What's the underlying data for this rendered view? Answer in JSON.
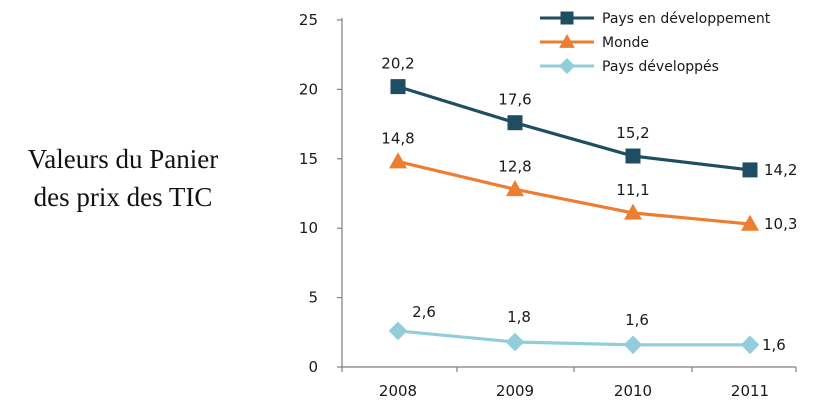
{
  "side_label": {
    "line1": "Valeurs du Panier",
    "line2": "des prix des TIC"
  },
  "chart_data": {
    "type": "line",
    "title": "",
    "xlabel": "",
    "ylabel": "",
    "categories": [
      "2008",
      "2009",
      "2010",
      "2011"
    ],
    "ylim": [
      0,
      25
    ],
    "yticks": [
      0,
      5,
      10,
      15,
      20,
      25
    ],
    "grid": false,
    "legend_position": "top-right",
    "series": [
      {
        "name": "Pays en développement",
        "values": [
          20.2,
          17.6,
          15.2,
          14.2
        ],
        "labels": [
          "20,2",
          "17,6",
          "15,2",
          "14,2"
        ],
        "color": "#1f4e63",
        "marker": "square"
      },
      {
        "name": "Monde",
        "values": [
          14.8,
          12.8,
          11.1,
          10.3
        ],
        "labels": [
          "14,8",
          "12,8",
          "11,1",
          "10,3"
        ],
        "color": "#ed7d31",
        "marker": "triangle"
      },
      {
        "name": "Pays développés",
        "values": [
          2.6,
          1.8,
          1.6,
          1.6
        ],
        "labels": [
          "2,6",
          "1,8",
          "1,6",
          "1,6"
        ],
        "color": "#92cddc",
        "marker": "diamond"
      }
    ]
  }
}
